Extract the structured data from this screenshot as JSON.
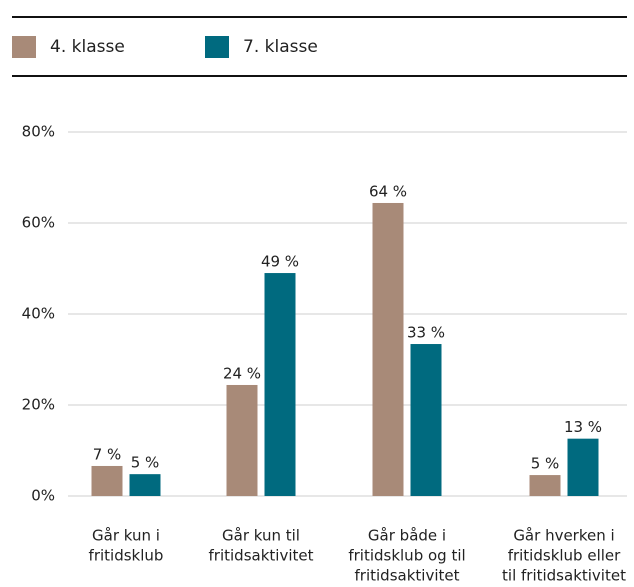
{
  "chart_data": {
    "type": "bar",
    "categories": [
      [
        "Går kun i",
        "fritidsklub"
      ],
      [
        "Går kun til",
        "fritidsaktivitet"
      ],
      [
        "Går både i",
        "fritidsklub og til",
        "fritidsaktivitet"
      ],
      [
        "Går hverken i",
        "fritidsklub eller",
        "til fritidsaktivitet"
      ]
    ],
    "series": [
      {
        "name": "4. klasse",
        "color": "#a88a78",
        "values": [
          6.6,
          24.4,
          64.4,
          4.6
        ],
        "value_labels": [
          "7 %",
          "24 %",
          "64 %",
          "5 %"
        ]
      },
      {
        "name": "7. klasse",
        "color": "#006a7f",
        "values": [
          4.8,
          49,
          33.4,
          12.6
        ],
        "value_labels": [
          "5 %",
          "49 %",
          "33 %",
          "13 %"
        ]
      }
    ],
    "ylim": [
      0,
      80
    ],
    "yticks": [
      {
        "value": 0,
        "label": "0%"
      },
      {
        "value": 20,
        "label": "20%"
      },
      {
        "value": 40,
        "label": "40%"
      },
      {
        "value": 60,
        "label": "60%"
      },
      {
        "value": 80,
        "label": "80%"
      }
    ],
    "grid": true,
    "legend": "top"
  }
}
